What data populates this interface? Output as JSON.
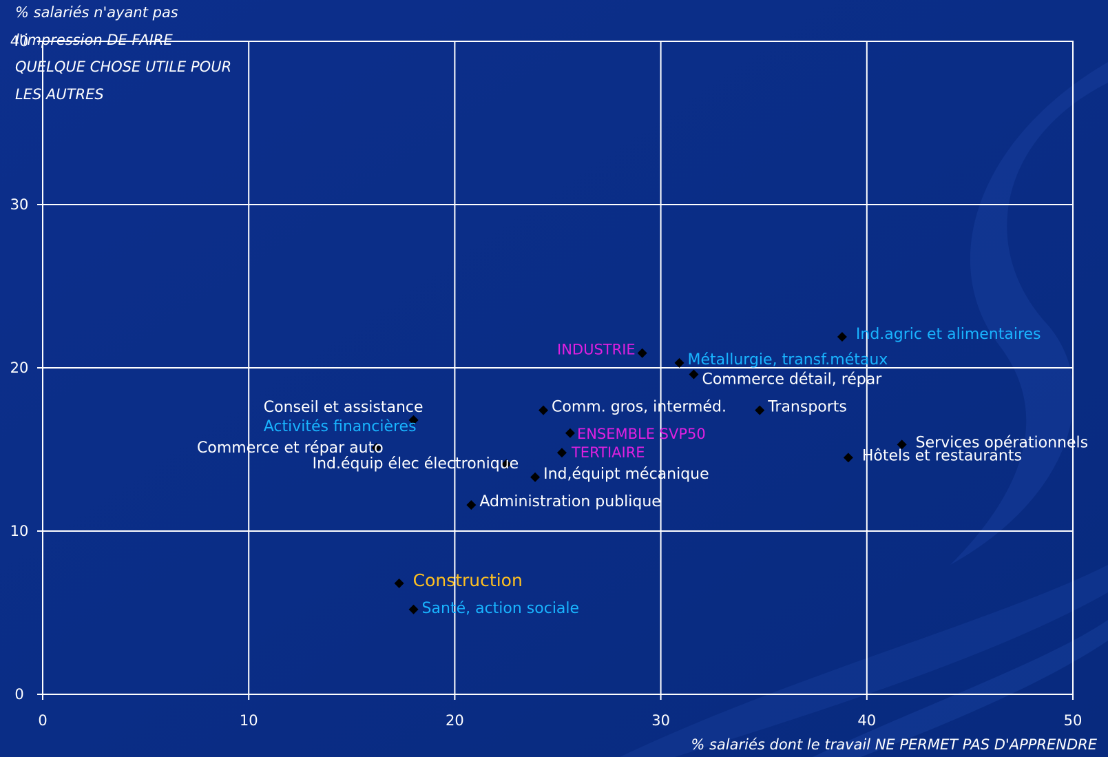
{
  "colors": {
    "background": "#0b2f8a",
    "grid": "#ffffff",
    "marker": "#000000",
    "label_white": "#ffffff",
    "label_cyan": "#19b4ff",
    "label_magenta": "#e020e0",
    "label_yellow": "#ffc020"
  },
  "chart_data": {
    "type": "scatter",
    "title": "",
    "xlabel": "% salariés dont le travail NE PERMET PAS D'APPRENDRE",
    "ylabel_lines": [
      "% salariés n'ayant pas",
      "l'impression DE FAIRE",
      "QUELQUE CHOSE UTILE POUR",
      "LES AUTRES"
    ],
    "xlim": [
      0,
      50
    ],
    "ylim": [
      0,
      40
    ],
    "x_ticks": [
      "0",
      "10",
      "20",
      "30",
      "40",
      "50"
    ],
    "y_ticks": [
      "0",
      "10",
      "20",
      "30",
      "40"
    ],
    "grid": true,
    "points": [
      {
        "label": "Ind.agric et alimentaires",
        "x": 38.8,
        "y": 21.9,
        "color": "cyan",
        "label_side": "right"
      },
      {
        "label": "INDUSTRIE",
        "x": 29.1,
        "y": 20.9,
        "color": "magenta",
        "label_side": "left"
      },
      {
        "label": "Métallurgie, transf.métaux",
        "x": 30.9,
        "y": 20.3,
        "color": "cyan",
        "label_side": "right"
      },
      {
        "label": "Commerce détail, répar",
        "x": 31.6,
        "y": 19.6,
        "color": "white",
        "label_side": "right"
      },
      {
        "label": "Conseil et assistance",
        "x": 18.0,
        "y": 16.8,
        "color": "white",
        "label_side": "left-above"
      },
      {
        "label": "Activités financières",
        "x": 18.0,
        "y": 16.8,
        "color": "cyan",
        "label_side": "left"
      },
      {
        "label": "Comm. gros, interméd.",
        "x": 24.3,
        "y": 17.4,
        "color": "white",
        "label_side": "right"
      },
      {
        "label": "Transports",
        "x": 34.8,
        "y": 17.4,
        "color": "white",
        "label_side": "right"
      },
      {
        "label": "ENSEMBLE SVP50",
        "x": 25.6,
        "y": 16.0,
        "color": "magenta",
        "label_side": "right"
      },
      {
        "label": "Services opérationnels",
        "x": 41.7,
        "y": 15.3,
        "color": "white",
        "label_side": "right"
      },
      {
        "label": "Commerce et répar auto",
        "x": 16.2,
        "y": 15.1,
        "color": "white",
        "label_side": "left"
      },
      {
        "label": "TERTIAIRE",
        "x": 25.2,
        "y": 14.8,
        "color": "magenta",
        "label_side": "right"
      },
      {
        "label": "Hôtels et restaurants",
        "x": 39.1,
        "y": 14.5,
        "color": "white",
        "label_side": "right"
      },
      {
        "label": "Ind.équip élec électronique",
        "x": 22.5,
        "y": 14.1,
        "color": "white",
        "label_side": "left"
      },
      {
        "label": "Ind,équipt mécanique",
        "x": 23.9,
        "y": 13.3,
        "color": "white",
        "label_side": "right"
      },
      {
        "label": "Administration publique",
        "x": 20.8,
        "y": 11.6,
        "color": "white",
        "label_side": "right"
      },
      {
        "label": "Construction",
        "x": 17.3,
        "y": 6.8,
        "color": "yellow",
        "label_side": "right"
      },
      {
        "label": "Santé, action sociale",
        "x": 18.0,
        "y": 5.2,
        "color": "cyan",
        "label_side": "right"
      }
    ]
  }
}
